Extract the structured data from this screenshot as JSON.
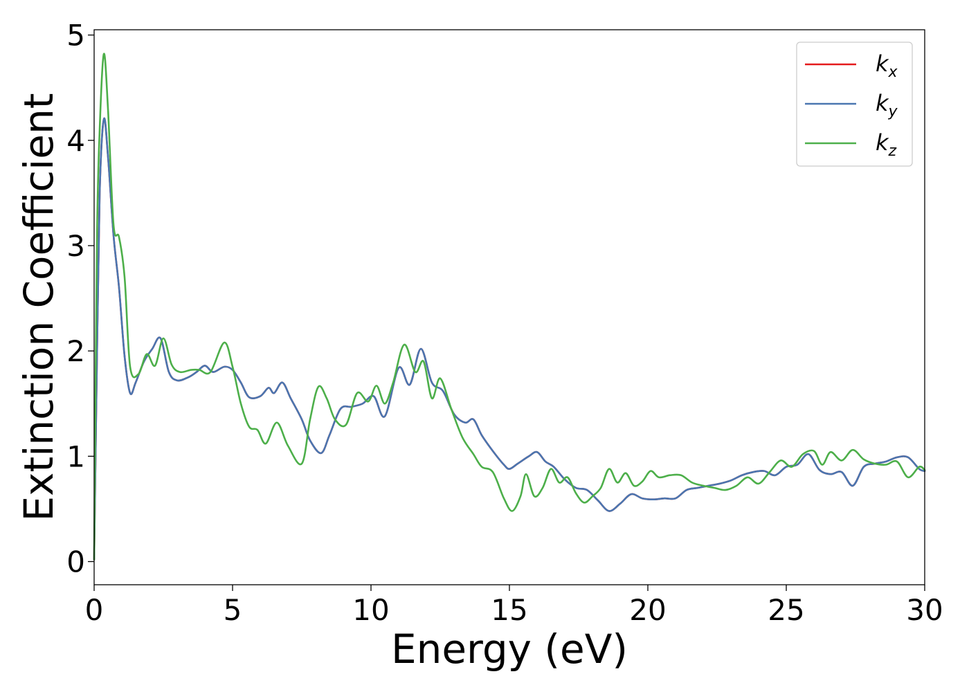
{
  "chart_data": {
    "type": "line",
    "title": "",
    "xlabel": "Energy (eV)",
    "ylabel": "Extinction Coefficient",
    "xlim": [
      0,
      30
    ],
    "ylim": [
      -0.22,
      5.05
    ],
    "xticks": [
      0,
      5,
      10,
      15,
      20,
      25,
      30
    ],
    "yticks": [
      0,
      1,
      2,
      3,
      4,
      5
    ],
    "grid": false,
    "legend": "top-right",
    "series": [
      {
        "name": "k",
        "sub": "x",
        "color": "#e41a1c",
        "x": [
          0,
          0.1,
          0.2,
          0.35,
          0.5,
          0.7,
          0.9,
          1.1,
          1.3,
          1.5,
          1.8,
          2.1,
          2.4,
          2.7,
          3.0,
          3.4,
          3.7,
          4.0,
          4.3,
          4.7,
          5.0,
          5.3,
          5.6,
          6.0,
          6.3,
          6.5,
          6.8,
          7.1,
          7.5,
          7.8,
          8.2,
          8.5,
          8.9,
          9.3,
          9.7,
          10.1,
          10.5,
          11.0,
          11.4,
          11.8,
          12.2,
          12.6,
          13.0,
          13.4,
          13.7,
          14.0,
          14.4,
          14.8,
          15.0,
          15.3,
          15.7,
          16.0,
          16.3,
          16.6,
          17.0,
          17.4,
          17.8,
          18.2,
          18.6,
          19.0,
          19.4,
          19.8,
          20.2,
          20.6,
          21.0,
          21.4,
          21.8,
          22.2,
          22.6,
          23.0,
          23.4,
          23.8,
          24.2,
          24.6,
          25.0,
          25.4,
          25.8,
          26.2,
          26.6,
          27.0,
          27.4,
          27.8,
          28.2,
          28.6,
          29.0,
          29.4,
          29.8,
          30.0
        ],
        "y": [
          0.02,
          1.9,
          3.5,
          4.2,
          3.85,
          3.1,
          2.6,
          1.95,
          1.6,
          1.7,
          1.9,
          2.02,
          2.12,
          1.8,
          1.72,
          1.75,
          1.8,
          1.86,
          1.8,
          1.85,
          1.82,
          1.7,
          1.56,
          1.57,
          1.65,
          1.6,
          1.7,
          1.55,
          1.35,
          1.15,
          1.03,
          1.2,
          1.45,
          1.47,
          1.5,
          1.57,
          1.38,
          1.84,
          1.68,
          2.02,
          1.7,
          1.62,
          1.4,
          1.32,
          1.35,
          1.2,
          1.05,
          0.92,
          0.88,
          0.93,
          1.0,
          1.04,
          0.95,
          0.9,
          0.78,
          0.7,
          0.68,
          0.58,
          0.48,
          0.55,
          0.64,
          0.6,
          0.59,
          0.6,
          0.6,
          0.68,
          0.7,
          0.72,
          0.74,
          0.77,
          0.82,
          0.85,
          0.86,
          0.82,
          0.9,
          0.92,
          1.02,
          0.87,
          0.83,
          0.85,
          0.72,
          0.9,
          0.93,
          0.95,
          0.99,
          0.99,
          0.88,
          0.86
        ]
      },
      {
        "name": "k",
        "sub": "y",
        "color": "#4a76b0",
        "x": [
          0,
          0.1,
          0.2,
          0.35,
          0.5,
          0.7,
          0.9,
          1.1,
          1.3,
          1.5,
          1.8,
          2.1,
          2.4,
          2.7,
          3.0,
          3.4,
          3.7,
          4.0,
          4.3,
          4.7,
          5.0,
          5.3,
          5.6,
          6.0,
          6.3,
          6.5,
          6.8,
          7.1,
          7.5,
          7.8,
          8.2,
          8.5,
          8.9,
          9.3,
          9.7,
          10.1,
          10.5,
          11.0,
          11.4,
          11.8,
          12.2,
          12.6,
          13.0,
          13.4,
          13.7,
          14.0,
          14.4,
          14.8,
          15.0,
          15.3,
          15.7,
          16.0,
          16.3,
          16.6,
          17.0,
          17.4,
          17.8,
          18.2,
          18.6,
          19.0,
          19.4,
          19.8,
          20.2,
          20.6,
          21.0,
          21.4,
          21.8,
          22.2,
          22.6,
          23.0,
          23.4,
          23.8,
          24.2,
          24.6,
          25.0,
          25.4,
          25.8,
          26.2,
          26.6,
          27.0,
          27.4,
          27.8,
          28.2,
          28.6,
          29.0,
          29.4,
          29.8,
          30.0
        ],
        "y": [
          0.02,
          1.9,
          3.5,
          4.2,
          3.85,
          3.1,
          2.6,
          1.95,
          1.6,
          1.7,
          1.9,
          2.02,
          2.12,
          1.8,
          1.72,
          1.75,
          1.8,
          1.86,
          1.8,
          1.85,
          1.82,
          1.7,
          1.56,
          1.57,
          1.65,
          1.6,
          1.7,
          1.55,
          1.35,
          1.15,
          1.03,
          1.2,
          1.45,
          1.47,
          1.5,
          1.57,
          1.38,
          1.84,
          1.68,
          2.02,
          1.7,
          1.62,
          1.4,
          1.32,
          1.35,
          1.2,
          1.05,
          0.92,
          0.88,
          0.93,
          1.0,
          1.04,
          0.95,
          0.9,
          0.78,
          0.7,
          0.68,
          0.58,
          0.48,
          0.55,
          0.64,
          0.6,
          0.59,
          0.6,
          0.6,
          0.68,
          0.7,
          0.72,
          0.74,
          0.77,
          0.82,
          0.85,
          0.86,
          0.82,
          0.9,
          0.92,
          1.02,
          0.87,
          0.83,
          0.85,
          0.72,
          0.9,
          0.93,
          0.95,
          0.99,
          0.99,
          0.88,
          0.86
        ]
      },
      {
        "name": "k",
        "sub": "z",
        "color": "#4daf4a",
        "x": [
          0,
          0.1,
          0.2,
          0.35,
          0.5,
          0.7,
          0.9,
          1.1,
          1.3,
          1.6,
          1.9,
          2.2,
          2.5,
          2.8,
          3.1,
          3.5,
          3.8,
          4.2,
          4.7,
          5.0,
          5.3,
          5.6,
          5.9,
          6.2,
          6.6,
          7.0,
          7.5,
          7.8,
          8.1,
          8.4,
          8.7,
          9.1,
          9.5,
          9.9,
          10.2,
          10.5,
          10.8,
          11.2,
          11.6,
          11.9,
          12.2,
          12.5,
          12.9,
          13.3,
          13.7,
          14.0,
          14.4,
          14.8,
          15.1,
          15.4,
          15.6,
          15.9,
          16.2,
          16.5,
          16.8,
          17.1,
          17.4,
          17.7,
          18.0,
          18.3,
          18.6,
          18.9,
          19.2,
          19.5,
          19.8,
          20.1,
          20.4,
          20.8,
          21.2,
          21.6,
          22.0,
          22.4,
          22.8,
          23.2,
          23.6,
          24.0,
          24.4,
          24.8,
          25.2,
          25.6,
          26.0,
          26.3,
          26.6,
          27.0,
          27.4,
          27.8,
          28.2,
          28.6,
          29.0,
          29.4,
          29.8,
          30.0
        ],
        "y": [
          0.02,
          3.0,
          4.1,
          4.82,
          4.3,
          3.2,
          3.08,
          2.7,
          1.85,
          1.78,
          1.97,
          1.86,
          2.12,
          1.87,
          1.8,
          1.82,
          1.82,
          1.8,
          2.08,
          1.85,
          1.5,
          1.28,
          1.25,
          1.12,
          1.32,
          1.1,
          0.93,
          1.35,
          1.66,
          1.55,
          1.35,
          1.3,
          1.6,
          1.52,
          1.67,
          1.5,
          1.7,
          2.06,
          1.8,
          1.9,
          1.55,
          1.74,
          1.45,
          1.18,
          1.02,
          0.9,
          0.85,
          0.6,
          0.48,
          0.62,
          0.83,
          0.62,
          0.7,
          0.88,
          0.75,
          0.8,
          0.65,
          0.56,
          0.62,
          0.7,
          0.88,
          0.75,
          0.84,
          0.72,
          0.76,
          0.86,
          0.8,
          0.82,
          0.82,
          0.75,
          0.72,
          0.7,
          0.68,
          0.72,
          0.8,
          0.74,
          0.85,
          0.96,
          0.9,
          1.02,
          1.05,
          0.92,
          1.04,
          0.96,
          1.06,
          0.97,
          0.93,
          0.92,
          0.95,
          0.8,
          0.9,
          0.87
        ]
      }
    ]
  }
}
